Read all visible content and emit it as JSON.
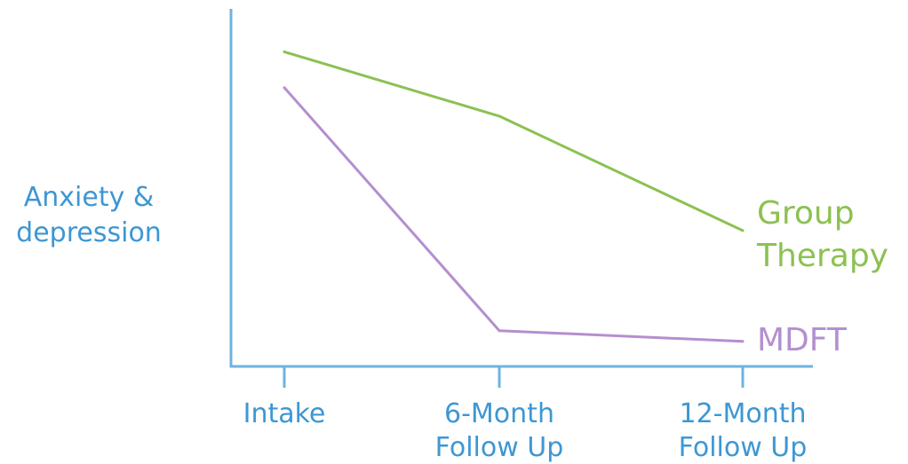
{
  "chart_data": {
    "type": "line",
    "categories": [
      "Intake",
      "6-Month Follow Up",
      "12-Month Follow Up"
    ],
    "category_lines": [
      [
        "Intake"
      ],
      [
        "6-Month",
        "Follow Up"
      ],
      [
        "12-Month",
        "Follow Up"
      ]
    ],
    "ylabel_lines": [
      "Anxiety &",
      "depression"
    ],
    "ylim": [
      0,
      100
    ],
    "grid": false,
    "series": [
      {
        "name": "Group Therapy",
        "name_lines": [
          "Group",
          "Therapy"
        ],
        "values": [
          88,
          70,
          38
        ],
        "color": "#8cc152"
      },
      {
        "name": "MDFT",
        "name_lines": [
          "MDFT"
        ],
        "values": [
          78,
          10,
          7
        ],
        "color": "#b48fcf"
      }
    ],
    "axis_color": "#6fb3e0",
    "text_color": "#3d97d3"
  }
}
